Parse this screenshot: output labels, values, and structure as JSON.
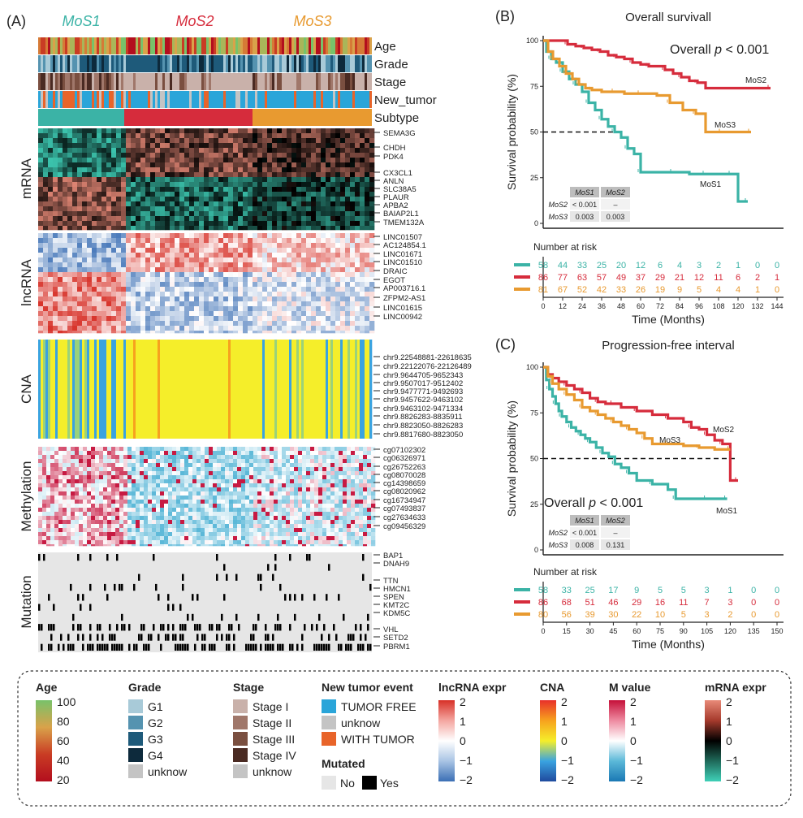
{
  "panel_a": {
    "label": "(A)",
    "subtype_names": [
      "MoS1",
      "MoS2",
      "MoS3"
    ],
    "subtype_colors": [
      "#3bb3a6",
      "#d62c3c",
      "#e89a30"
    ],
    "annotation_tracks": [
      "Age",
      "Grade",
      "Stage",
      "New_tumor",
      "Subtype"
    ],
    "blocks": [
      {
        "name": "mRNA",
        "genes": [
          "SEMA3G",
          "CHDH",
          "PDK4",
          "CX3CL1",
          "ANLN",
          "SLC38A5",
          "PLAUR",
          "APBA2",
          "BAIAP2L1",
          "TMEM132A"
        ]
      },
      {
        "name": "lncRNA",
        "genes": [
          "LINC01507",
          "AC124854.1",
          "LINC01671",
          "LINC01510",
          "DRAIC",
          "EGOT",
          "AP003716.1",
          "ZFPM2-AS1",
          "LINC01615",
          "LINC00942"
        ]
      },
      {
        "name": "CNA",
        "genes": [
          "chr9.22548881-22618635",
          "chr9.22122076-22126489",
          "chr9.9644705-9652343",
          "chr9.9507017-9512402",
          "chr9.9477771-9492693",
          "chr9.9457622-9463102",
          "chr9.9463102-9471334",
          "chr9.8826283-8835911",
          "chr9.8823050-8826283",
          "chr9.8817680-8823050"
        ]
      },
      {
        "name": "Methylation",
        "genes": [
          "cg07102302",
          "cg06326971",
          "cg26752263",
          "cg08070028",
          "cg14398659",
          "cg08020962",
          "cg16734947",
          "cg07493837",
          "cg27634633",
          "cg09456329"
        ]
      },
      {
        "name": "Mutation",
        "genes": [
          "BAP1",
          "DNAH9",
          "TTN",
          "HMCN1",
          "SPEN",
          "KMT2C",
          "KDM5C",
          "VHL",
          "SETD2",
          "PBRM1"
        ]
      }
    ]
  },
  "chart_data": [
    {
      "type": "line",
      "panel": "(B)",
      "title": "Overall survivall",
      "xlabel": "Time (Months)",
      "ylabel": "Survival probability (%)",
      "xlim": [
        0,
        144
      ],
      "ylim": [
        0,
        100
      ],
      "xticks": [
        0,
        12,
        24,
        36,
        48,
        60,
        72,
        84,
        96,
        108,
        120,
        132,
        144
      ],
      "yticks": [
        0,
        25,
        50,
        75,
        100
      ],
      "annotation_prefix": "Overall",
      "annotation_p": "p",
      "annotation_value": "< 0.001",
      "median_line_y": 50,
      "series": [
        {
          "name": "MoS1",
          "color": "#3bb3a6",
          "x": [
            0,
            2,
            5,
            8,
            12,
            16,
            20,
            24,
            28,
            32,
            36,
            40,
            44,
            48,
            52,
            56,
            60,
            70,
            80,
            90,
            100,
            110,
            116,
            120,
            126
          ],
          "y": [
            100,
            94,
            90,
            88,
            83,
            79,
            76,
            72,
            66,
            62,
            57,
            53,
            50,
            47,
            41,
            38,
            28,
            28,
            28,
            27,
            27,
            27,
            27,
            12,
            12
          ]
        },
        {
          "name": "MoS2",
          "color": "#d62c3c",
          "x": [
            0,
            10,
            15,
            20,
            25,
            30,
            35,
            40,
            45,
            50,
            55,
            60,
            65,
            70,
            75,
            80,
            85,
            90,
            95,
            100,
            140
          ],
          "y": [
            100,
            100,
            98,
            97,
            96,
            95,
            94,
            92,
            91,
            90,
            88,
            87,
            86,
            86,
            84,
            82,
            80,
            78,
            77,
            74,
            74
          ]
        },
        {
          "name": "MoS3",
          "color": "#e89a30",
          "x": [
            0,
            3,
            6,
            10,
            14,
            18,
            22,
            26,
            30,
            36,
            44,
            50,
            60,
            70,
            78,
            86,
            94,
            100,
            110,
            120,
            128
          ],
          "y": [
            100,
            94,
            90,
            86,
            82,
            79,
            76,
            74,
            73,
            72,
            72,
            71,
            71,
            70,
            66,
            62,
            60,
            50,
            50,
            50,
            50
          ]
        }
      ],
      "pvalue_table": {
        "cols": [
          "MoS1",
          "MoS2"
        ],
        "rows": [
          {
            "name": "MoS2",
            "vals": [
              "< 0.001",
              "–"
            ]
          },
          {
            "name": "MoS3",
            "vals": [
              "0.003",
              "0.003"
            ]
          }
        ]
      },
      "risk_title": "Number at risk",
      "risk_table": [
        {
          "name": "MoS1",
          "color": "#3bb3a6",
          "vals": [
            58,
            44,
            33,
            25,
            20,
            12,
            6,
            4,
            3,
            2,
            1,
            0,
            0
          ]
        },
        {
          "name": "MoS2",
          "color": "#d62c3c",
          "vals": [
            86,
            77,
            63,
            57,
            49,
            37,
            29,
            21,
            12,
            11,
            6,
            2,
            1
          ]
        },
        {
          "name": "MoS3",
          "color": "#e89a30",
          "vals": [
            81,
            67,
            52,
            42,
            33,
            26,
            19,
            9,
            5,
            4,
            4,
            1,
            0
          ]
        }
      ]
    },
    {
      "type": "line",
      "panel": "(C)",
      "title": "Progression-free interval",
      "xlabel": "Time (Months)",
      "ylabel": "Survival probability (%)",
      "xlim": [
        0,
        150
      ],
      "ylim": [
        0,
        100
      ],
      "xticks": [
        0,
        15,
        30,
        45,
        60,
        75,
        90,
        105,
        120,
        135,
        150
      ],
      "yticks": [
        0,
        25,
        50,
        75,
        100
      ],
      "annotation_prefix": "Overall",
      "annotation_p": "p",
      "annotation_value": "< 0.001",
      "median_line_y": 50,
      "series": [
        {
          "name": "MoS1",
          "color": "#3bb3a6",
          "x": [
            0,
            2,
            4,
            6,
            8,
            10,
            12,
            15,
            18,
            21,
            24,
            27,
            30,
            34,
            38,
            42,
            46,
            50,
            55,
            60,
            70,
            80,
            85,
            95,
            105,
            115,
            118
          ],
          "y": [
            100,
            93,
            88,
            84,
            80,
            76,
            73,
            70,
            67,
            65,
            63,
            61,
            59,
            56,
            53,
            51,
            47,
            45,
            42,
            38,
            36,
            33,
            28,
            28,
            28,
            28,
            28
          ]
        },
        {
          "name": "MoS2",
          "color": "#d62c3c",
          "x": [
            0,
            3,
            6,
            10,
            15,
            20,
            25,
            30,
            35,
            40,
            45,
            50,
            60,
            70,
            80,
            90,
            95,
            100,
            105,
            110,
            115,
            120,
            125
          ],
          "y": [
            100,
            96,
            94,
            92,
            90,
            88,
            86,
            83,
            81,
            80,
            80,
            78,
            76,
            74,
            72,
            70,
            67,
            66,
            63,
            60,
            58,
            38,
            38
          ]
        },
        {
          "name": "MoS3",
          "color": "#e89a30",
          "x": [
            0,
            3,
            6,
            10,
            15,
            20,
            25,
            30,
            35,
            40,
            45,
            50,
            55,
            60,
            65,
            70,
            80,
            90,
            100,
            110,
            120
          ],
          "y": [
            100,
            95,
            91,
            88,
            85,
            82,
            78,
            76,
            74,
            72,
            70,
            68,
            66,
            64,
            61,
            58,
            58,
            57,
            56,
            55,
            55
          ]
        }
      ],
      "pvalue_table": {
        "cols": [
          "MoS1",
          "MoS2"
        ],
        "rows": [
          {
            "name": "MoS2",
            "vals": [
              "< 0.001",
              "–"
            ]
          },
          {
            "name": "MoS3",
            "vals": [
              "0.008",
              "0.131"
            ]
          }
        ]
      },
      "risk_title": "Number at risk",
      "risk_table": [
        {
          "name": "MoS1",
          "color": "#3bb3a6",
          "vals": [
            58,
            33,
            25,
            17,
            9,
            5,
            5,
            3,
            1,
            0,
            0
          ]
        },
        {
          "name": "MoS2",
          "color": "#d62c3c",
          "vals": [
            86,
            68,
            51,
            46,
            29,
            16,
            11,
            7,
            3,
            0,
            0
          ]
        },
        {
          "name": "MoS3",
          "color": "#e89a30",
          "vals": [
            80,
            56,
            39,
            30,
            22,
            10,
            5,
            3,
            2,
            0,
            0
          ]
        }
      ]
    }
  ],
  "legend": {
    "groups": [
      {
        "title": "Age",
        "kind": "gradient",
        "colors": [
          "#78c26a",
          "#d9a24a",
          "#c93c24",
          "#b30e1e"
        ],
        "ticks": [
          "100",
          "80",
          "60",
          "40",
          "20"
        ]
      },
      {
        "title": "Grade",
        "kind": "discrete",
        "items": [
          {
            "label": "G1",
            "color": "#a8cad8"
          },
          {
            "label": "G2",
            "color": "#5593b0"
          },
          {
            "label": "G3",
            "color": "#1e5a7a"
          },
          {
            "label": "G4",
            "color": "#0d2a3c"
          },
          {
            "label": "unknow",
            "color": "#c4c4c4"
          }
        ]
      },
      {
        "title": "Stage",
        "kind": "discrete",
        "items": [
          {
            "label": "Stage I",
            "color": "#c9b1aa"
          },
          {
            "label": "Stage II",
            "color": "#a0776a"
          },
          {
            "label": "Stage III",
            "color": "#7a4f40"
          },
          {
            "label": "Stage IV",
            "color": "#4a2a22"
          },
          {
            "label": "unknow",
            "color": "#c4c4c4"
          }
        ]
      },
      {
        "title": "New tumor event",
        "kind": "discrete",
        "items": [
          {
            "label": "TUMOR FREE",
            "color": "#2aa5d9"
          },
          {
            "label": "unknow",
            "color": "#c4c4c4"
          },
          {
            "label": "WITH TUMOR",
            "color": "#e8642a"
          }
        ]
      },
      {
        "title": "lncRNA expr",
        "kind": "gradient",
        "colors": [
          "#d73027",
          "#f4a6a0",
          "#ffffff",
          "#a9c4e4",
          "#3b6fb5"
        ],
        "ticks": [
          "2",
          "1",
          "0",
          "−1",
          "−2"
        ]
      },
      {
        "title": "CNA",
        "kind": "gradient",
        "colors": [
          "#e8302a",
          "#f7a21e",
          "#f5ee2a",
          "#3aa3e0",
          "#1f4a9e"
        ],
        "ticks": [
          "2",
          "1",
          "0",
          "−1",
          "−2"
        ]
      },
      {
        "title": "M value",
        "kind": "gradient",
        "colors": [
          "#c5103a",
          "#ee8aa0",
          "#ffffff",
          "#5bb8d8",
          "#1a78b4"
        ],
        "ticks": [
          "2",
          "1",
          "0",
          "−1",
          "−2"
        ]
      },
      {
        "title": "mRNA expr",
        "kind": "gradient",
        "colors": [
          "#e88a78",
          "#a63a2c",
          "#000000",
          "#1f6a5a",
          "#3fd0b8"
        ],
        "ticks": [
          "2",
          "1",
          "0",
          "−1",
          "−2"
        ]
      }
    ],
    "mutated": {
      "title": "Mutated",
      "no_label": "No",
      "yes_label": "Yes",
      "no_color": "#e6e6e6",
      "yes_color": "#000000"
    }
  }
}
